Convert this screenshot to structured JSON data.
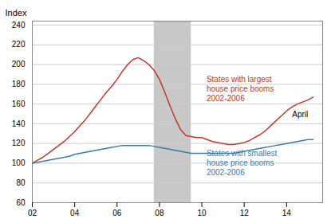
{
  "chart_data": {
    "type": "line",
    "ylabel": "Index",
    "x": [
      2002.0,
      2002.25,
      2002.5,
      2002.75,
      2003.0,
      2003.25,
      2003.5,
      2003.75,
      2004.0,
      2004.25,
      2004.5,
      2004.75,
      2005.0,
      2005.25,
      2005.5,
      2005.75,
      2006.0,
      2006.25,
      2006.5,
      2006.75,
      2007.0,
      2007.25,
      2007.5,
      2007.75,
      2008.0,
      2008.25,
      2008.5,
      2008.75,
      2009.0,
      2009.25,
      2009.5,
      2009.75,
      2010.0,
      2010.25,
      2010.5,
      2010.75,
      2011.0,
      2011.25,
      2011.5,
      2011.75,
      2012.0,
      2012.25,
      2012.5,
      2012.75,
      2013.0,
      2013.25,
      2013.5,
      2013.75,
      2014.0,
      2014.25,
      2014.5,
      2014.75,
      2015.0,
      2015.25
    ],
    "series": [
      {
        "name": "States with largest\nhouse price booms\n2002-2006",
        "color": "#c0392b",
        "values": [
          100,
          103,
          106,
          110,
          114,
          118,
          122,
          127,
          132,
          138,
          144,
          151,
          158,
          165,
          172,
          178,
          185,
          193,
          200,
          205,
          207,
          204,
          200,
          194,
          185,
          172,
          158,
          145,
          134,
          128,
          127,
          126,
          126,
          124,
          122,
          121,
          120,
          119,
          119,
          120,
          121,
          123,
          126,
          129,
          133,
          138,
          143,
          148,
          153,
          157,
          160,
          162,
          164,
          167
        ]
      },
      {
        "name": "States with smallest\nhouse price booms\n2002-2006",
        "color": "#3a7ca5",
        "values": [
          100,
          101,
          102,
          103,
          104,
          105,
          106,
          107,
          109,
          110,
          111,
          112,
          113,
          114,
          115,
          116,
          117,
          118,
          118,
          118,
          118,
          118,
          118,
          117,
          116,
          115,
          114,
          113,
          112,
          111,
          110,
          110,
          110,
          110,
          110,
          110,
          110,
          110,
          110,
          111,
          112,
          113,
          114,
          115,
          116,
          117,
          118,
          119,
          120,
          121,
          122,
          123,
          124,
          124
        ]
      }
    ],
    "shaded_span": {
      "start": 2007.75,
      "end": 2009.5,
      "color": "#c8c8c8"
    },
    "annotations": [
      {
        "text": "April"
      }
    ],
    "xlim": [
      2002,
      2015.7
    ],
    "ylim": [
      60,
      244
    ],
    "xticks": [
      {
        "value": 2002,
        "label": "02"
      },
      {
        "value": 2004,
        "label": "04"
      },
      {
        "value": 2006,
        "label": "06"
      },
      {
        "value": 2008,
        "label": "08"
      },
      {
        "value": 2010,
        "label": "10"
      },
      {
        "value": 2012,
        "label": "12"
      },
      {
        "value": 2014,
        "label": "14"
      }
    ],
    "yticks": [
      60,
      80,
      100,
      120,
      140,
      160,
      180,
      200,
      220,
      240
    ],
    "grid": true,
    "legend": false
  }
}
